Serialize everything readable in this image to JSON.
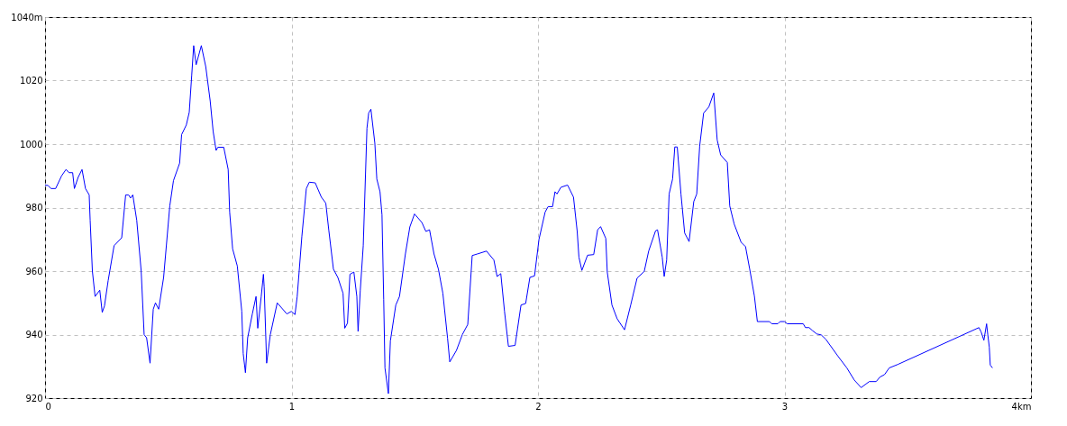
{
  "chart_data": {
    "type": "line",
    "x": [
      0,
      0.012,
      0.024,
      0.043,
      0.067,
      0.085,
      0.097,
      0.112,
      0.119,
      0.134,
      0.15,
      0.164,
      0.179,
      0.183,
      0.192,
      0.203,
      0.222,
      0.232,
      0.241,
      0.256,
      0.28,
      0.311,
      0.327,
      0.339,
      0.347,
      0.356,
      0.372,
      0.39,
      0.402,
      0.412,
      0.426,
      0.439,
      0.448,
      0.461,
      0.481,
      0.506,
      0.521,
      0.546,
      0.554,
      0.573,
      0.585,
      0.595,
      0.603,
      0.613,
      0.634,
      0.652,
      0.67,
      0.682,
      0.694,
      0.701,
      0.725,
      0.743,
      0.749,
      0.761,
      0.78,
      0.798,
      0.804,
      0.813,
      0.822,
      0.841,
      0.856,
      0.863,
      0.877,
      0.886,
      0.889,
      0.899,
      0.914,
      0.942,
      0.981,
      0.999,
      1.014,
      1.023,
      1.042,
      1.06,
      1.072,
      1.096,
      1.121,
      1.139,
      1.151,
      1.17,
      1.188,
      1.209,
      1.216,
      1.227,
      1.237,
      1.253,
      1.265,
      1.27,
      1.279,
      1.291,
      1.306,
      1.313,
      1.322,
      1.338,
      1.346,
      1.359,
      1.367,
      1.374,
      1.379,
      1.393,
      1.401,
      1.423,
      1.438,
      1.462,
      1.48,
      1.499,
      1.529,
      1.545,
      1.56,
      1.578,
      1.596,
      1.614,
      1.633,
      1.642,
      1.669,
      1.693,
      1.715,
      1.733,
      1.754,
      1.791,
      1.821,
      1.834,
      1.849,
      1.864,
      1.88,
      1.907,
      1.931,
      1.95,
      1.967,
      1.986,
      2.004,
      2.029,
      2.041,
      2.059,
      2.069,
      2.077,
      2.093,
      2.12,
      2.144,
      2.159,
      2.166,
      2.178,
      2.201,
      2.226,
      2.242,
      2.254,
      2.275,
      2.281,
      2.3,
      2.321,
      2.351,
      2.376,
      2.402,
      2.431,
      2.449,
      2.477,
      2.485,
      2.504,
      2.512,
      2.522,
      2.532,
      2.546,
      2.555,
      2.565,
      2.58,
      2.595,
      2.613,
      2.632,
      2.644,
      2.656,
      2.672,
      2.693,
      2.713,
      2.727,
      2.741,
      2.768,
      2.778,
      2.796,
      2.824,
      2.842,
      2.859,
      2.878,
      2.89,
      2.939,
      2.948,
      2.973,
      2.982,
      3.0,
      3.011,
      3.076,
      3.085,
      3.1,
      3.113,
      3.131,
      3.149,
      3.168,
      3.216,
      3.253,
      3.283,
      3.311,
      3.344,
      3.372,
      3.387,
      3.406,
      3.425,
      3.46,
      3.789,
      3.798,
      3.809,
      3.82,
      3.825,
      3.831,
      3.835,
      3.844
    ],
    "series": [
      {
        "color": "#0000ff",
        "values": [
          987,
          987,
          986,
          986,
          990,
          992,
          991,
          991,
          986,
          989.5,
          992,
          986,
          984,
          976,
          960,
          952,
          954,
          947,
          949,
          957,
          968,
          970.5,
          984,
          984,
          983,
          984,
          976,
          960,
          940,
          939,
          931,
          948,
          950,
          948,
          958,
          980.5,
          988.5,
          994,
          1003,
          1006,
          1010,
          1021.6,
          1031,
          1025,
          1031,
          1024.4,
          1013.6,
          1004,
          998,
          999,
          999,
          992,
          978.6,
          967,
          961.6,
          947.4,
          934,
          928,
          939,
          946.5,
          952,
          942,
          952,
          959,
          955,
          931,
          940,
          950,
          946.5,
          947.3,
          946.3,
          952,
          971,
          986,
          988,
          987.8,
          983.3,
          981.4,
          973,
          960.6,
          958,
          953,
          942,
          943.6,
          959,
          959.7,
          952,
          941,
          954,
          968,
          1005,
          1009.8,
          1011,
          1000.3,
          989,
          985,
          977.7,
          951,
          929.5,
          921.4,
          938,
          949.3,
          952,
          965.4,
          973.9,
          978,
          975.3,
          972.5,
          973,
          965.4,
          960.6,
          953,
          938.9,
          931.4,
          935,
          940,
          943.2,
          964.9,
          965.4,
          966.3,
          963.5,
          958.3,
          959.2,
          947.4,
          936.3,
          936.6,
          949.3,
          949.8,
          958,
          958.5,
          970,
          978.6,
          980.3,
          980.3,
          985,
          984.3,
          986.4,
          987.1,
          983.3,
          972.5,
          964.4,
          960.2,
          965,
          965.2,
          973,
          974,
          970.3,
          959.7,
          949.3,
          945,
          941.5,
          949.3,
          957.8,
          959.9,
          966.3,
          972.7,
          973,
          964.4,
          958.3,
          963.5,
          984.3,
          989,
          999.1,
          999.1,
          984.3,
          972,
          969.3,
          981.9,
          984.3,
          999.4,
          1009.8,
          1011.7,
          1016.1,
          1001.3,
          996.6,
          994.2,
          980.5,
          974.8,
          969.1,
          967.7,
          960.6,
          952.1,
          944.1,
          944.1,
          943.4,
          943.4,
          944.1,
          944.1,
          943.4,
          943.4,
          942.2,
          942.2,
          941.3,
          940.2,
          939.9,
          938.5,
          933.3,
          929.5,
          925.7,
          923.3,
          925.2,
          925.2,
          926.6,
          927.4,
          929.5,
          930.6,
          942.2,
          940.8,
          938.2,
          943.4,
          939.9,
          936.1,
          930.4,
          929.5
        ]
      }
    ],
    "xlim": [
      0,
      4
    ],
    "xticks": [
      0,
      1,
      2,
      3,
      {
        "value": 4,
        "label": "4km"
      }
    ],
    "ylim": [
      920,
      1040
    ],
    "yticks": [
      920,
      940,
      960,
      980,
      1000,
      1020,
      {
        "value": 1040,
        "label": "1040m"
      }
    ],
    "grid": true
  }
}
